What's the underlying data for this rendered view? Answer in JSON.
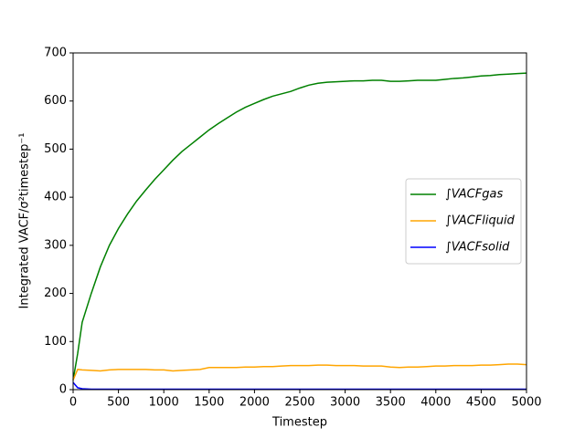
{
  "chart_data": {
    "type": "line",
    "xlabel": "Timestep",
    "ylabel": "Integrated VACF/σ²timestep⁻¹",
    "x": [
      0,
      50,
      100,
      200,
      300,
      400,
      500,
      600,
      700,
      800,
      900,
      1000,
      1100,
      1200,
      1300,
      1400,
      1500,
      1600,
      1700,
      1800,
      1900,
      2000,
      2100,
      2200,
      2300,
      2400,
      2500,
      2600,
      2700,
      2800,
      2900,
      3000,
      3100,
      3200,
      3300,
      3400,
      3500,
      3600,
      3700,
      3800,
      3900,
      4000,
      4100,
      4200,
      4300,
      4400,
      4500,
      4600,
      4700,
      4800,
      4900,
      5000
    ],
    "series": [
      {
        "name": "∫VACFgas",
        "color": "#008000",
        "values": [
          20,
          75,
          140,
          200,
          255,
          300,
          335,
          365,
          392,
          415,
          437,
          457,
          477,
          495,
          510,
          525,
          540,
          553,
          565,
          577,
          587,
          595,
          603,
          610,
          615,
          620,
          627,
          633,
          637,
          639,
          640,
          641,
          642,
          642,
          643,
          643,
          641,
          641,
          642,
          643,
          643,
          643,
          645,
          647,
          648,
          650,
          652,
          653,
          655,
          656,
          657,
          658
        ]
      },
      {
        "name": "∫VACFliquid",
        "color": "#ffa500",
        "values": [
          20,
          42,
          41,
          40,
          39,
          41,
          42,
          42,
          42,
          42,
          41,
          41,
          39,
          40,
          41,
          42,
          46,
          46,
          46,
          46,
          47,
          47,
          48,
          48,
          49,
          50,
          50,
          50,
          51,
          51,
          50,
          50,
          50,
          49,
          49,
          49,
          47,
          46,
          47,
          47,
          48,
          49,
          49,
          50,
          50,
          50,
          51,
          51,
          52,
          53,
          53,
          52
        ]
      },
      {
        "name": "∫VACFsolid",
        "color": "#0000ff",
        "values": [
          15,
          4,
          2,
          1,
          1,
          1,
          1,
          1,
          1,
          1,
          1,
          1,
          1,
          1,
          1,
          1,
          1,
          1,
          1,
          1,
          1,
          1,
          1,
          1,
          1,
          1,
          1,
          1,
          1,
          1,
          1,
          1,
          1,
          1,
          1,
          1,
          1,
          1,
          1,
          1,
          1,
          1,
          1,
          1,
          1,
          1,
          1,
          1,
          1,
          1,
          1,
          1
        ]
      }
    ],
    "xlim": [
      0,
      5000
    ],
    "xticks": [
      0,
      500,
      1000,
      1500,
      2000,
      2500,
      3000,
      3500,
      4000,
      4500,
      5000
    ],
    "ylim": [
      0,
      700
    ],
    "yticks": [
      0,
      100,
      200,
      300,
      400,
      500,
      600,
      700
    ],
    "legend": "center right"
  }
}
